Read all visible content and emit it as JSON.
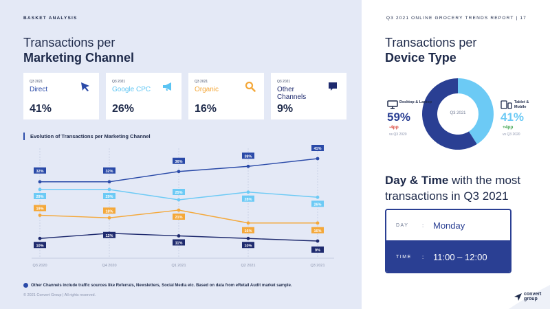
{
  "header": {
    "section": "BASKET ANALYSIS",
    "report": "Q3 2021 ONLINE GROCERY TRENDS REPORT  |  17"
  },
  "left_title": {
    "line1": "Transactions per",
    "line2": "Marketing Channel"
  },
  "cards": [
    {
      "quarter": "Q3 2021",
      "name_line1": "Direct",
      "name_line2": "",
      "value": "41%",
      "color": "#2a4aa8",
      "icon": "cursor-arrow-icon"
    },
    {
      "quarter": "Q3 2021",
      "name_line1": "Google CPC",
      "name_line2": "",
      "value": "26%",
      "color": "#5bc4f3",
      "icon": "megaphone-icon"
    },
    {
      "quarter": "Q3 2021",
      "name_line1": "Organic",
      "name_line2": "",
      "value": "16%",
      "color": "#f4a83a",
      "icon": "search-icon"
    },
    {
      "quarter": "Q3 2021",
      "name_line1": "Other",
      "name_line2": "Channels",
      "value": "9%",
      "color": "#1e2a6e",
      "icon": "chat-bubble-icon"
    }
  ],
  "chart_data": {
    "type": "line",
    "title": "Evolution of Transactions per Marketing Channel",
    "x": [
      "Q3 2020",
      "Q4 2020",
      "Q1 2021",
      "Q2 2021",
      "Q3 2021"
    ],
    "ylim": [
      5,
      45
    ],
    "series": [
      {
        "name": "Direct",
        "values": [
          32,
          32,
          36,
          38,
          41
        ],
        "labels": [
          "32%",
          "32%",
          "36%",
          "38%",
          "41%"
        ],
        "color": "#2a4aa8"
      },
      {
        "name": "Google CPC",
        "values": [
          29,
          29,
          25,
          28,
          26
        ],
        "labels": [
          "29%",
          "29%",
          "25%",
          "28%",
          "26%"
        ],
        "color": "#6ccaf5"
      },
      {
        "name": "Organic",
        "values": [
          19,
          18,
          21,
          16,
          16
        ],
        "labels": [
          "19%",
          "18%",
          "21%",
          "16%",
          "16%"
        ],
        "color": "#f4a83a"
      },
      {
        "name": "Other Channels",
        "values": [
          10,
          12,
          11,
          10,
          9
        ],
        "labels": [
          "10%",
          "12%",
          "11%",
          "10%",
          "9%"
        ],
        "color": "#1e2a6e"
      }
    ],
    "grid": "vertical-dashed",
    "legend": "none"
  },
  "footnote": "Other Channels include traffic sources like Referrals, Newsletters, Social Media etc. Based on data from eRetail Audit market sample.",
  "copyright": "© 2021 Convert Group  |  All rights reserved.",
  "right_title": {
    "line1": "Transactions per",
    "line2": "Device Type"
  },
  "device_chart": {
    "type": "pie",
    "center_label": "Q3 2021",
    "segments": [
      {
        "name": "Desktop & Laptop",
        "value": 59,
        "label": "59%",
        "change": "-4pp",
        "vs": "vs Q3 2020",
        "color": "#2a3f93",
        "icon": "monitor-icon"
      },
      {
        "name": "Tablet & Mobile",
        "value": 41,
        "label": "41%",
        "change": "+4pp",
        "vs": "vs Q3 2020",
        "color": "#6ccaf5",
        "icon": "tablet-mobile-icon"
      }
    ]
  },
  "daytime": {
    "title_bold": "Day & Time",
    "title_rest1": " with the most",
    "title_line2": "transactions in Q3 2021",
    "day_label": "DAY",
    "day_value": "Monday",
    "time_label": "TIME",
    "time_value": "11:00 – 12:00",
    "separator": ":"
  },
  "logo": {
    "line1": "convert",
    "line2": "group"
  }
}
